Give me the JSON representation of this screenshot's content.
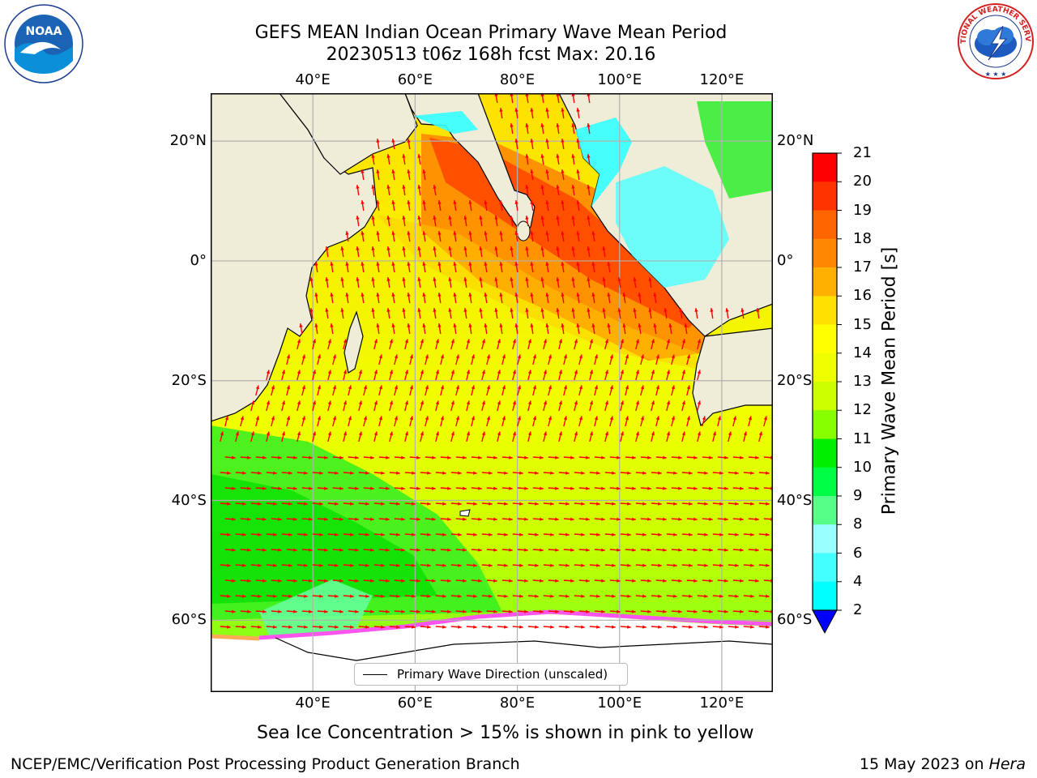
{
  "title": {
    "line1": "GEFS MEAN Indian Ocean Primary Wave Mean Period",
    "line2": "20230513 t06z 168h fcst   Max: 20.16"
  },
  "logos": {
    "left": {
      "name": "noara-logo",
      "text_center": "NOAA",
      "ring_text": "NATIONAL OCEANIC AND ATMOSPHERIC ADMINISTRATION · U.S. DEPARTMENT OF COMMERCE"
    },
    "right": {
      "name": "nws-logo",
      "ring_text": "NATIONAL WEATHER SERVICE"
    }
  },
  "map": {
    "lon_labels": [
      "40°E",
      "60°E",
      "80°E",
      "100°E",
      "120°E"
    ],
    "lat_labels": [
      "20°N",
      "0°",
      "20°S",
      "40°S",
      "60°S"
    ],
    "lon_range": [
      20,
      130
    ],
    "lat_range": [
      -72,
      28
    ],
    "grid": true,
    "legend": {
      "label": "Primary Wave Direction (unscaled)"
    }
  },
  "colorbar": {
    "label": "Primary Wave Mean Period [s]",
    "ticks": [
      "21",
      "20",
      "19",
      "18",
      "17",
      "16",
      "15",
      "14",
      "13",
      "12",
      "11",
      "10",
      "9",
      "8",
      "6",
      "4",
      "2"
    ],
    "colors": [
      "#ff0000",
      "#ff3300",
      "#ff6600",
      "#ff8800",
      "#ffb000",
      "#ffe000",
      "#ffff00",
      "#eeff00",
      "#ccff00",
      "#88ff00",
      "#00ee00",
      "#00ff44",
      "#55ff88",
      "#99ffff",
      "#44ffff",
      "#00ffff",
      "#0088ff"
    ],
    "extend_color": "#0000ff"
  },
  "caption": "Sea Ice Concentration > 15% is shown in pink to yellow",
  "footer": {
    "left": "NCEP/EMC/Verification Post Processing Product Generation Branch",
    "date": "15 May 2023 on ",
    "host": "Hera"
  }
}
